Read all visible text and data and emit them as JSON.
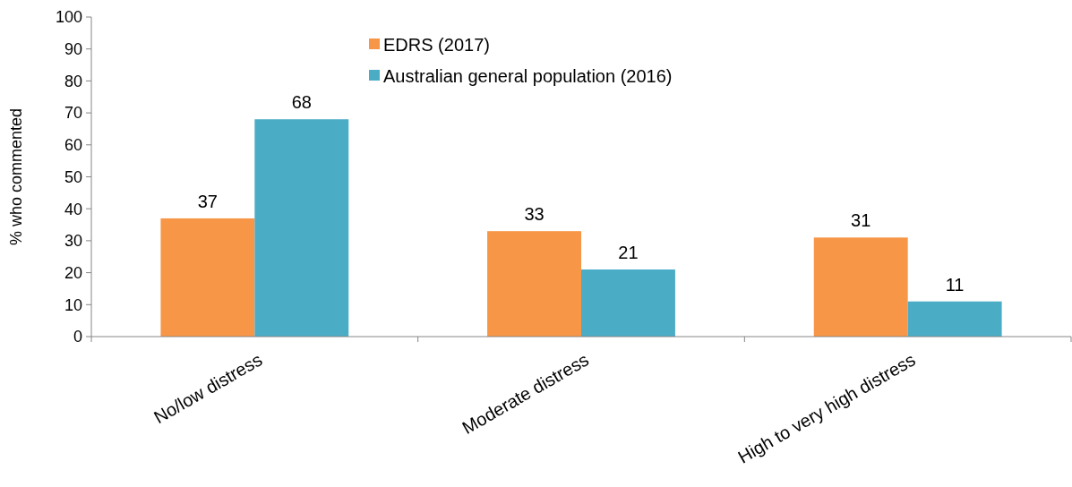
{
  "chart_data": {
    "type": "bar",
    "ylabel": "% who commented",
    "categories": [
      "No/low distress",
      "Moderate distress",
      "High to very high distress"
    ],
    "series": [
      {
        "name": "EDRS (2017)",
        "color": "#f79646",
        "values": [
          37,
          33,
          31
        ]
      },
      {
        "name": "Australian general population (2016)",
        "color": "#4bacc6",
        "values": [
          68,
          21,
          11
        ]
      }
    ],
    "ylim": [
      0,
      100
    ],
    "yticks": [
      0,
      10,
      20,
      30,
      40,
      50,
      60,
      70,
      80,
      90,
      100
    ],
    "data_labels": true,
    "legend": "top",
    "grid": false
  }
}
